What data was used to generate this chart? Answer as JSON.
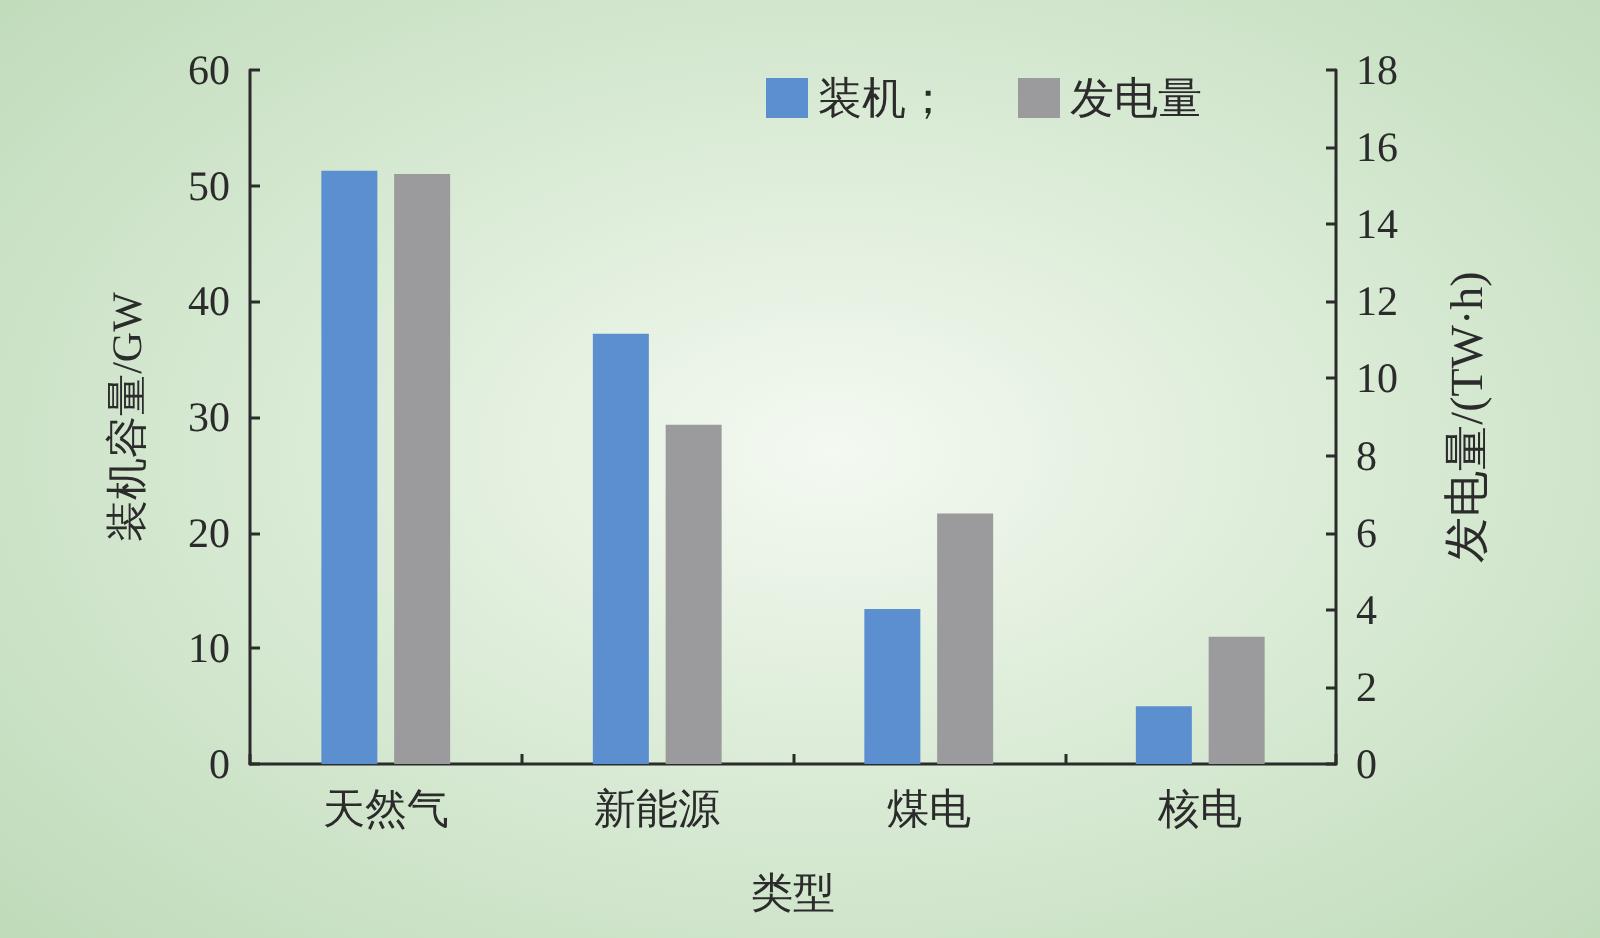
{
  "chart_data": {
    "type": "bar",
    "xlabel": "类型",
    "ylabel": "装机容量/GW",
    "y2label": "发电量/(TW·h)",
    "categories": [
      "天然气",
      "新能源",
      "煤电",
      "核电"
    ],
    "series": [
      {
        "name": "装机；",
        "color": "#5b8fd0",
        "values": [
          51.3,
          37.2,
          13.4,
          5.0
        ]
      },
      {
        "name": "发电量",
        "color": "#9b9b9d",
        "axis": "y2",
        "values": [
          15.3,
          8.8,
          6.5,
          3.3
        ]
      }
    ],
    "ylim": [
      0,
      60
    ],
    "yticks": [
      0,
      10,
      20,
      30,
      40,
      50,
      60
    ],
    "y2lim": [
      0,
      18
    ],
    "y2ticks": [
      0,
      2,
      4,
      6,
      8,
      10,
      12,
      14,
      16,
      18
    ],
    "grid": false,
    "legend": "top right"
  }
}
